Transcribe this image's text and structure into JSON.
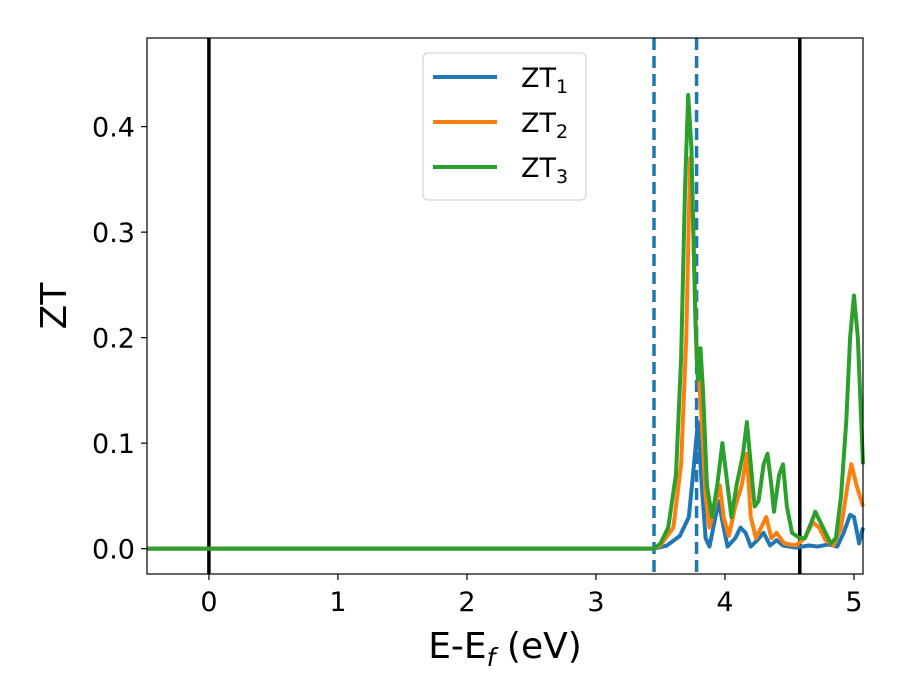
{
  "chart_data": {
    "type": "line",
    "title": "",
    "xlabel": {
      "main": "E-E",
      "sub": "f",
      "suffix": " (eV)"
    },
    "ylabel": "ZT",
    "xlim": [
      -0.48,
      5.07
    ],
    "ylim": [
      -0.024,
      0.484
    ],
    "xticks": [
      0,
      1,
      2,
      3,
      4,
      5
    ],
    "xtick_labels": [
      "0",
      "1",
      "2",
      "3",
      "4",
      "5"
    ],
    "yticks": [
      0.0,
      0.1,
      0.2,
      0.3,
      0.4
    ],
    "ytick_labels": [
      "0.0",
      "0.1",
      "0.2",
      "0.3",
      "0.4"
    ],
    "grid": false,
    "legend_position": "top-center",
    "vlines": [
      {
        "x": 0.0,
        "style": "solid",
        "color": "#000000"
      },
      {
        "x": 4.58,
        "style": "solid",
        "color": "#000000"
      },
      {
        "x": 3.45,
        "style": "dashed",
        "color": "#1f77b4"
      },
      {
        "x": 3.78,
        "style": "dashed",
        "color": "#1f77b4"
      }
    ],
    "series": [
      {
        "name": "ZT",
        "sub": "1",
        "color": "#1f77b4",
        "points": [
          [
            -0.48,
            0
          ],
          [
            3.45,
            0
          ],
          [
            3.55,
            0.003
          ],
          [
            3.65,
            0.012
          ],
          [
            3.72,
            0.03
          ],
          [
            3.76,
            0.08
          ],
          [
            3.79,
            0.12
          ],
          [
            3.82,
            0.06
          ],
          [
            3.85,
            0.01
          ],
          [
            3.88,
            0.002
          ],
          [
            3.91,
            0.02
          ],
          [
            3.95,
            0.045
          ],
          [
            3.99,
            0.02
          ],
          [
            4.02,
            0.002
          ],
          [
            4.08,
            0.01
          ],
          [
            4.12,
            0.02
          ],
          [
            4.16,
            0.015
          ],
          [
            4.2,
            0.002
          ],
          [
            4.25,
            0.008
          ],
          [
            4.3,
            0.015
          ],
          [
            4.35,
            0.003
          ],
          [
            4.4,
            0.008
          ],
          [
            4.45,
            0.003
          ],
          [
            4.55,
            0.001
          ],
          [
            4.65,
            0.003
          ],
          [
            4.72,
            0.002
          ],
          [
            4.8,
            0.004
          ],
          [
            4.87,
            0.002
          ],
          [
            4.92,
            0.015
          ],
          [
            4.97,
            0.032
          ],
          [
            5.0,
            0.03
          ],
          [
            5.04,
            0.005
          ],
          [
            5.07,
            0.02
          ]
        ]
      },
      {
        "name": "ZT",
        "sub": "2",
        "color": "#ff7f0e",
        "points": [
          [
            -0.48,
            0
          ],
          [
            3.45,
            0
          ],
          [
            3.5,
            0.003
          ],
          [
            3.6,
            0.02
          ],
          [
            3.66,
            0.08
          ],
          [
            3.7,
            0.2
          ],
          [
            3.73,
            0.37
          ],
          [
            3.75,
            0.32
          ],
          [
            3.78,
            0.18
          ],
          [
            3.8,
            0.16
          ],
          [
            3.83,
            0.1
          ],
          [
            3.85,
            0.05
          ],
          [
            3.88,
            0.02
          ],
          [
            3.92,
            0.04
          ],
          [
            3.96,
            0.06
          ],
          [
            3.99,
            0.03
          ],
          [
            4.03,
            0.012
          ],
          [
            4.08,
            0.04
          ],
          [
            4.13,
            0.06
          ],
          [
            4.17,
            0.09
          ],
          [
            4.2,
            0.03
          ],
          [
            4.24,
            0.01
          ],
          [
            4.28,
            0.02
          ],
          [
            4.32,
            0.03
          ],
          [
            4.36,
            0.01
          ],
          [
            4.4,
            0.015
          ],
          [
            4.46,
            0.005
          ],
          [
            4.55,
            0.003
          ],
          [
            4.62,
            0.01
          ],
          [
            4.68,
            0.025
          ],
          [
            4.73,
            0.02
          ],
          [
            4.78,
            0.008
          ],
          [
            4.84,
            0.003
          ],
          [
            4.9,
            0.02
          ],
          [
            4.95,
            0.06
          ],
          [
            4.98,
            0.08
          ],
          [
            5.02,
            0.06
          ],
          [
            5.07,
            0.04
          ]
        ]
      },
      {
        "name": "ZT",
        "sub": "3",
        "color": "#2ca02c",
        "points": [
          [
            -0.48,
            0
          ],
          [
            3.45,
            0
          ],
          [
            3.5,
            0.005
          ],
          [
            3.56,
            0.02
          ],
          [
            3.62,
            0.07
          ],
          [
            3.66,
            0.18
          ],
          [
            3.69,
            0.34
          ],
          [
            3.715,
            0.43
          ],
          [
            3.74,
            0.38
          ],
          [
            3.77,
            0.22
          ],
          [
            3.79,
            0.16
          ],
          [
            3.81,
            0.19
          ],
          [
            3.83,
            0.15
          ],
          [
            3.86,
            0.06
          ],
          [
            3.9,
            0.03
          ],
          [
            3.94,
            0.06
          ],
          [
            3.98,
            0.1
          ],
          [
            4.01,
            0.07
          ],
          [
            4.05,
            0.03
          ],
          [
            4.09,
            0.06
          ],
          [
            4.14,
            0.09
          ],
          [
            4.17,
            0.12
          ],
          [
            4.2,
            0.08
          ],
          [
            4.23,
            0.04
          ],
          [
            4.26,
            0.045
          ],
          [
            4.3,
            0.08
          ],
          [
            4.33,
            0.09
          ],
          [
            4.36,
            0.06
          ],
          [
            4.38,
            0.035
          ],
          [
            4.42,
            0.07
          ],
          [
            4.45,
            0.08
          ],
          [
            4.48,
            0.04
          ],
          [
            4.52,
            0.015
          ],
          [
            4.58,
            0.01
          ],
          [
            4.62,
            0.01
          ],
          [
            4.67,
            0.025
          ],
          [
            4.7,
            0.035
          ],
          [
            4.74,
            0.025
          ],
          [
            4.78,
            0.015
          ],
          [
            4.82,
            0.005
          ],
          [
            4.86,
            0.01
          ],
          [
            4.9,
            0.05
          ],
          [
            4.94,
            0.12
          ],
          [
            4.97,
            0.2
          ],
          [
            5.0,
            0.24
          ],
          [
            5.03,
            0.2
          ],
          [
            5.07,
            0.08
          ]
        ]
      }
    ]
  }
}
